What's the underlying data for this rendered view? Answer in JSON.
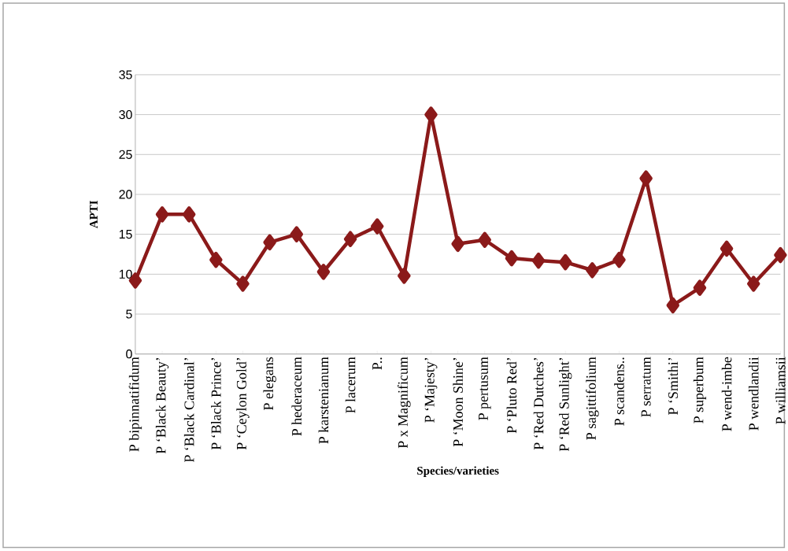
{
  "chart_data": {
    "type": "line",
    "xlabel": "Species/varieties",
    "ylabel": "APTI",
    "categories": [
      "P bipinnatifidum",
      "P ‘Black Beauty’",
      "P ‘Black Cardinal’",
      "P ‘Black Prince’",
      "P ‘Ceylon Gold’",
      "P elegans",
      "P  hederaceum",
      "P karstenianum",
      "P lacerum",
      "P..",
      "P x Magnificum",
      "P ‘Majesty’",
      "P ‘Moon Shine’",
      "P pertusum",
      "P ‘Pluto Red’",
      "P ‘Red Dutches’",
      "P ‘Red Sunlight’",
      "P sagittifolium",
      "P scandens..",
      "P serratum",
      "P ‘Smithi’",
      "P superbum",
      "P wend-imbe",
      "P wendlandii",
      "P williamsii"
    ],
    "values": [
      9.2,
      17.5,
      17.5,
      11.8,
      8.8,
      14,
      15,
      10.3,
      14.4,
      16,
      9.8,
      30,
      13.8,
      14.3,
      12,
      11.7,
      11.5,
      10.5,
      11.8,
      22,
      6.1,
      8.3,
      13.2,
      8.8,
      12.4
    ],
    "color": "#8b1a1a",
    "marker": "diamond",
    "line_style": "solid",
    "grid": "y",
    "ylim": [
      0,
      35
    ],
    "yticks": [
      0,
      5,
      10,
      15,
      20,
      25,
      30,
      35
    ]
  }
}
